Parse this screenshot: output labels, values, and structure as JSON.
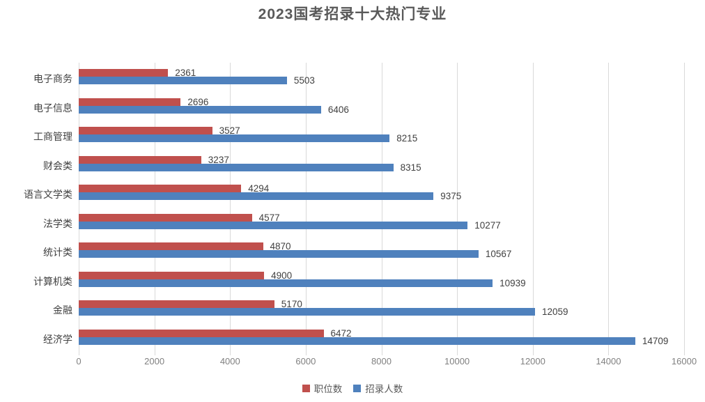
{
  "title": "2023国考招录十大热门专业",
  "chart_data": {
    "type": "bar",
    "orientation": "horizontal",
    "title": "2023国考招录十大热门专业",
    "categories": [
      "电子商务",
      "电子信息",
      "工商管理",
      "财会类",
      "语言文学类",
      "法学类",
      "统计类",
      "计算机类",
      "金融",
      "经济学"
    ],
    "series": [
      {
        "name": "职位数",
        "color": "#C0504D",
        "values": [
          2361,
          2696,
          3527,
          3237,
          4294,
          4577,
          4870,
          4900,
          5170,
          6472
        ]
      },
      {
        "name": "招录人数",
        "color": "#4F81BD",
        "values": [
          5503,
          6406,
          8215,
          8315,
          9375,
          10277,
          10567,
          10939,
          12059,
          14709
        ]
      }
    ],
    "xlim": [
      0,
      16000
    ],
    "x_ticks": [
      0,
      2000,
      4000,
      6000,
      8000,
      10000,
      12000,
      14000,
      16000
    ],
    "grid": true,
    "value_labels": true,
    "legend_position": "bottom"
  },
  "colors": {
    "background": "#FFFFFF",
    "series1": "#C0504D",
    "series2": "#4F81BD",
    "gridline": "#D9D9D9",
    "title": "#595959",
    "category_label": "#404040",
    "value_label": "#404040",
    "tick_label": "#808080",
    "legend_label": "#595959"
  }
}
